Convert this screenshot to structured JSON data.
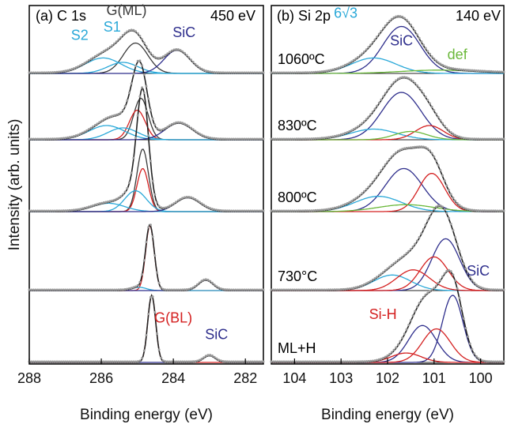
{
  "y_axis_label": "Intensity (arb. units)",
  "chart_data": [
    {
      "type": "line",
      "panel_title": "(a)  C 1s",
      "photon_energy": "450 eV",
      "xlabel": "Binding energy (eV)",
      "ylabel": "Intensity (arb. units)",
      "xlim": [
        288,
        281.5
      ],
      "x_reversed": true,
      "x_ticks": [
        288,
        286,
        284,
        282
      ],
      "grid": false,
      "rows": [
        {
          "label": "",
          "components": [
            {
              "name": "G(ML)",
              "color": "#3a3a3a",
              "center": 285.05,
              "width": 0.34,
              "amp": 0.55
            },
            {
              "name": "S1",
              "color": "#29a8d8",
              "center": 285.4,
              "width": 0.42,
              "amp": 0.2
            },
            {
              "name": "S2",
              "color": "#29a8d8",
              "center": 285.95,
              "width": 0.5,
              "amp": 0.28
            },
            {
              "name": "SiC",
              "color": "#2e2e8c",
              "center": 283.9,
              "width": 0.36,
              "amp": 0.42
            }
          ]
        },
        {
          "label": "",
          "components": [
            {
              "name": "G(ML)",
              "color": "#3a3a3a",
              "center": 284.9,
              "width": 0.2,
              "amp": 0.7
            },
            {
              "name": "G(BL)",
              "color": "#d42020",
              "center": 285.0,
              "width": 0.22,
              "amp": 0.5
            },
            {
              "name": "S1",
              "color": "#29a8d8",
              "center": 285.4,
              "width": 0.42,
              "amp": 0.2
            },
            {
              "name": "S2",
              "color": "#29a8d8",
              "center": 285.85,
              "width": 0.5,
              "amp": 0.24
            },
            {
              "name": "SiC",
              "color": "#2e2e8c",
              "center": 283.85,
              "width": 0.38,
              "amp": 0.28
            }
          ]
        },
        {
          "label": "",
          "components": [
            {
              "name": "G(ML)",
              "color": "#3a3a3a",
              "center": 284.85,
              "width": 0.16,
              "amp": 0.9
            },
            {
              "name": "G(BL)",
              "color": "#d42020",
              "center": 284.85,
              "width": 0.16,
              "amp": 0.62
            },
            {
              "name": "S1",
              "color": "#29a8d8",
              "center": 285.05,
              "width": 0.3,
              "amp": 0.3
            },
            {
              "name": "S2",
              "color": "#29a8d8",
              "center": 285.8,
              "width": 0.45,
              "amp": 0.12
            },
            {
              "name": "SiC",
              "color": "#2e2e8c",
              "center": 283.6,
              "width": 0.34,
              "amp": 0.2
            }
          ]
        },
        {
          "label": "",
          "components": [
            {
              "name": "G(BL)",
              "color": "#d42020",
              "center": 284.65,
              "width": 0.12,
              "amp": 1.0
            },
            {
              "name": "S1",
              "color": "#29a8d8",
              "center": 284.95,
              "width": 0.2,
              "amp": 0.05
            },
            {
              "name": "SiC",
              "color": "#2e2e8c",
              "center": 283.1,
              "width": 0.2,
              "amp": 0.16
            }
          ]
        },
        {
          "label": "",
          "components": [
            {
              "name": "G(BL)",
              "color": "#d42020",
              "center": 284.6,
              "width": 0.11,
              "amp": 1.0
            },
            {
              "name": "SiC",
              "color": "#2e2e8c",
              "center": 283.0,
              "width": 0.16,
              "amp": 0.1
            }
          ]
        }
      ],
      "annotations": [
        {
          "text": "G(ML)",
          "color": "#3a3a3a",
          "x": 285.3,
          "row": 0,
          "rel_y": 1.0
        },
        {
          "text": "S1",
          "color": "#29a8d8",
          "x": 285.7,
          "row": 0,
          "rel_y": 0.7
        },
        {
          "text": "S2",
          "color": "#29a8d8",
          "x": 286.6,
          "row": 0,
          "rel_y": 0.55
        },
        {
          "text": "SiC",
          "color": "#2e2e8c",
          "x": 283.7,
          "row": 0,
          "rel_y": 0.6
        },
        {
          "text": "G(BL)",
          "color": "#d42020",
          "x": 284.0,
          "row": 4,
          "rel_y": 0.55
        },
        {
          "text": "SiC",
          "color": "#2e2e8c",
          "x": 282.8,
          "row": 4,
          "rel_y": 0.3
        }
      ]
    },
    {
      "type": "line",
      "panel_title": "(b)  Si 2p",
      "photon_energy": "140 eV",
      "xlabel": "Binding energy (eV)",
      "ylabel": "",
      "xlim": [
        104.5,
        99.5
      ],
      "x_reversed": true,
      "x_ticks": [
        104,
        103,
        102,
        101,
        100
      ],
      "grid": false,
      "rows": [
        {
          "label": "1060ºC",
          "components": [
            {
              "name": "SiC",
              "color": "#2e2e8c",
              "center": 101.7,
              "width": 0.4,
              "amp": 0.85
            },
            {
              "name": "6√3",
              "color": "#29a8d8",
              "center": 102.3,
              "width": 0.48,
              "amp": 0.28
            },
            {
              "name": "def",
              "color": "#6ab83a",
              "center": 100.9,
              "width": 0.8,
              "amp": 0.06
            }
          ]
        },
        {
          "label": "830ºC",
          "components": [
            {
              "name": "SiC",
              "color": "#2e2e8c",
              "center": 101.7,
              "width": 0.42,
              "amp": 0.8
            },
            {
              "name": "6√3",
              "color": "#29a8d8",
              "center": 102.3,
              "width": 0.5,
              "amp": 0.18
            },
            {
              "name": "Si-H",
              "color": "#d42020",
              "center": 101.1,
              "width": 0.3,
              "amp": 0.24
            },
            {
              "name": "def",
              "color": "#6ab83a",
              "center": 101.5,
              "width": 0.35,
              "amp": 0.14
            }
          ]
        },
        {
          "label": "800ºC",
          "components": [
            {
              "name": "SiC",
              "color": "#2e2e8c",
              "center": 101.65,
              "width": 0.4,
              "amp": 0.62
            },
            {
              "name": "6√3",
              "color": "#29a8d8",
              "center": 102.2,
              "width": 0.5,
              "amp": 0.22
            },
            {
              "name": "Si-H",
              "color": "#d42020",
              "center": 101.05,
              "width": 0.28,
              "amp": 0.55
            },
            {
              "name": "def",
              "color": "#6ab83a",
              "center": 101.6,
              "width": 0.6,
              "amp": 0.1
            }
          ]
        },
        {
          "label": "730°C",
          "components": [
            {
              "name": "SiC",
              "color": "#2e2e8c",
              "center": 100.75,
              "width": 0.3,
              "amp": 0.8
            },
            {
              "name": "6√3",
              "color": "#29a8d8",
              "center": 101.9,
              "width": 0.4,
              "amp": 0.24
            },
            {
              "name": "Si-H",
              "color": "#d42020",
              "center": 101.0,
              "width": 0.3,
              "amp": 0.52
            },
            {
              "name": "def",
              "color": "#d42020",
              "center": 101.45,
              "width": 0.35,
              "amp": 0.32
            }
          ]
        },
        {
          "label": "ML+H",
          "components": [
            {
              "name": "SiC",
              "color": "#2e2e8c",
              "center": 100.6,
              "width": 0.22,
              "amp": 1.0
            },
            {
              "name": "SiC",
              "color": "#2e2e8c",
              "center": 101.25,
              "width": 0.3,
              "amp": 0.55
            },
            {
              "name": "Si-H",
              "color": "#d42020",
              "center": 100.95,
              "width": 0.3,
              "amp": 0.5
            },
            {
              "name": "def",
              "color": "#d42020",
              "center": 101.6,
              "width": 0.32,
              "amp": 0.14
            }
          ]
        }
      ],
      "annotations": [
        {
          "text": "6√3",
          "color": "#29a8d8",
          "x": 102.9,
          "row": 0,
          "rel_y": 0.95
        },
        {
          "text": "SiC",
          "color": "#2e2e8c",
          "x": 101.7,
          "row": 0,
          "rel_y": 0.45
        },
        {
          "text": "def",
          "color": "#6ab83a",
          "x": 100.5,
          "row": 0,
          "rel_y": 0.2
        },
        {
          "text": "SiC",
          "color": "#2e2e8c",
          "x": 100.05,
          "row": 4,
          "rel_y": 1.25
        },
        {
          "text": "Si-H",
          "color": "#d42020",
          "x": 102.1,
          "row": 4,
          "rel_y": 0.6
        }
      ]
    }
  ]
}
